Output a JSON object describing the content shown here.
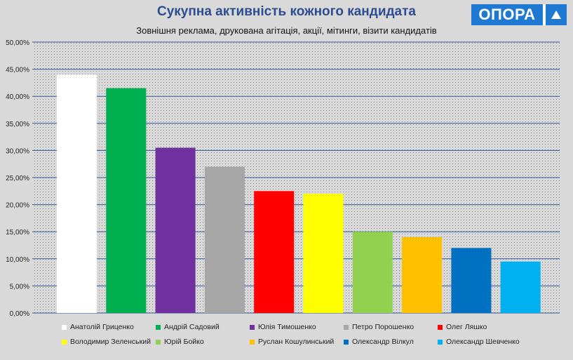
{
  "header": {
    "title": "Сукупна активність кожного кандидата",
    "subtitle": "Зовнішня реклама, друкована агітація, акції, мітинги, візити кандидатів",
    "logo_text": "ОПОРА"
  },
  "chart_data": {
    "type": "bar",
    "categories": [
      "Анатолій Гриценко",
      "Андрій Садовий",
      "Юлія Тимошенко",
      "Петро Порошенко",
      "Олег Ляшко",
      "Володимир Зеленський",
      "Юрій Бойко",
      "Руслан Кошулинський",
      "Олександр Вілкул",
      "Олександр Шевченко"
    ],
    "values": [
      44.0,
      41.5,
      30.5,
      27.0,
      22.5,
      22.0,
      15.0,
      14.0,
      12.0,
      9.5
    ],
    "colors": [
      "#ffffff",
      "#00b050",
      "#7030a0",
      "#a6a6a6",
      "#ff0000",
      "#ffff00",
      "#92d050",
      "#ffc000",
      "#0070c0",
      "#00b0f0"
    ],
    "ylim": [
      0,
      50
    ],
    "yticks": [
      "0,00%",
      "5,00%",
      "10,00%",
      "15,00%",
      "20,00%",
      "25,00%",
      "30,00%",
      "35,00%",
      "40,00%",
      "45,00%",
      "50,00%"
    ],
    "grid": true,
    "gridline_color": "#2f5597",
    "legend_position": "bottom"
  }
}
